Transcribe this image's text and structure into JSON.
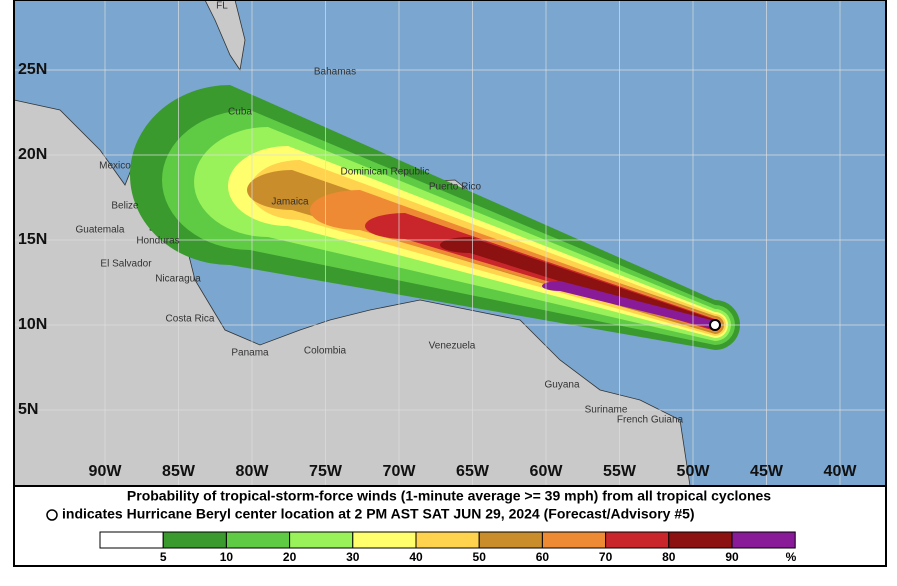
{
  "map": {
    "lat_labels": [
      "25N",
      "20N",
      "15N",
      "10N",
      "5N"
    ],
    "lon_labels": [
      "90W",
      "85W",
      "80W",
      "75W",
      "70W",
      "65W",
      "60W",
      "55W",
      "50W",
      "45W",
      "40W"
    ],
    "places": [
      "FL",
      "Bahamas",
      "Cuba",
      "Mexico",
      "Belize",
      "Jamaica",
      "Dominican Republic",
      "Puerto Rico",
      "Guatemala",
      "Honduras",
      "El Salvador",
      "Nicaragua",
      "Costa Rica",
      "Panama",
      "Colombia",
      "Venezuela",
      "Guyana",
      "Suriname",
      "French Guiana"
    ],
    "caption": [
      "Probability of tropical-storm-force winds (1-minute average >= 39 mph) from all tropical cyclones",
      "indicates Hurricane Beryl center location at 2 PM AST SAT JUN 29, 2024 (Forecast/Advisory #5)"
    ],
    "legend": {
      "ticks": [
        5,
        10,
        20,
        30,
        40,
        50,
        60,
        70,
        80,
        90
      ],
      "unit": "%",
      "colors": [
        "#ffffff",
        "#3a9a2e",
        "#5fcb45",
        "#9af25a",
        "#ffff6e",
        "#ffd34d",
        "#c98d2c",
        "#ef8a34",
        "#c9262b",
        "#8c1111",
        "#8a1b98"
      ]
    }
  }
}
